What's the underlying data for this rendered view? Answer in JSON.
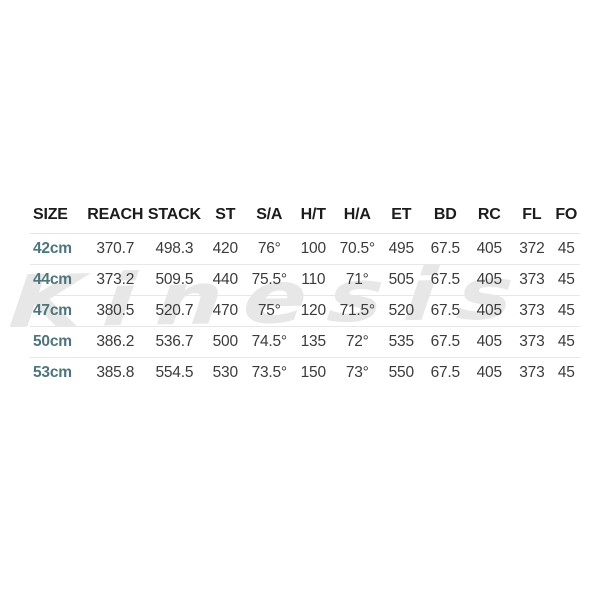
{
  "watermark": {
    "text": "Kinesis",
    "color": "#e7e7e7"
  },
  "chart_data": {
    "type": "table",
    "columns": [
      "SIZE",
      "REACH",
      "STACK",
      "ST",
      "S/A",
      "H/T",
      "H/A",
      "ET",
      "BD",
      "RC",
      "FL",
      "FO"
    ],
    "rows": [
      [
        "42cm",
        "370.7",
        "498.3",
        "420",
        "76°",
        "100",
        "70.5°",
        "495",
        "67.5",
        "405",
        "372",
        "45"
      ],
      [
        "44cm",
        "373.2",
        "509.5",
        "440",
        "75.5°",
        "110",
        "71°",
        "505",
        "67.5",
        "405",
        "373",
        "45"
      ],
      [
        "47cm",
        "380.5",
        "520.7",
        "470",
        "75°",
        "120",
        "71.5°",
        "520",
        "67.5",
        "405",
        "373",
        "45"
      ],
      [
        "50cm",
        "386.2",
        "536.7",
        "500",
        "74.5°",
        "135",
        "72°",
        "535",
        "67.5",
        "405",
        "373",
        "45"
      ],
      [
        "53cm",
        "385.8",
        "554.5",
        "530",
        "73.5°",
        "150",
        "73°",
        "550",
        "67.5",
        "405",
        "373",
        "45"
      ]
    ],
    "layout": {
      "grid": "horizontal row dividers only",
      "first_column_align": "left",
      "other_columns_align": "center"
    }
  },
  "colors": {
    "background": "#ffffff",
    "header_text": "#1c1c1c",
    "cell_text": "#3b3b3b",
    "size_accent": "#4e747c",
    "row_divider": "#e5e5e5",
    "watermark": "#e7e7e7"
  }
}
